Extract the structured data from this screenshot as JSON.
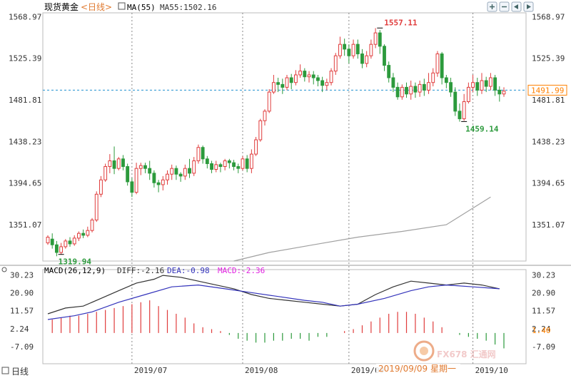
{
  "header": {
    "instrument": "现货黄金",
    "period": "<日线>",
    "ma_toggle": "MA(55)",
    "ma_readout": "MA55:1502.16",
    "toolbar_icons": [
      "zoom-in-icon",
      "zoom-out-icon",
      "scroll-left-icon",
      "scroll-right-icon"
    ]
  },
  "watermark": {
    "brand": "FX678 汇通网",
    "date_readout": "2019/09/09 星期一"
  },
  "bottom_left": "日线",
  "colors": {
    "up": "#e03c3c",
    "down": "#2c9a3c",
    "ma55": "#a0a0a0",
    "diff": "#333333",
    "dea": "#3333bb",
    "price_marker": "#ff8000",
    "dashed": "#2090d0"
  },
  "chart_data": [
    {
      "type": "candlestick",
      "title": "",
      "ylim": [
        1313,
        1573
      ],
      "y_ticks": [
        "1568.97",
        "1525.39",
        "1481.81",
        "1438.23",
        "1394.65",
        "1351.07"
      ],
      "x_ticks": [
        "2019/07",
        "2019/08",
        "2019/09",
        "2019/10"
      ],
      "current_price": "1491.99",
      "current_price_value": 1491.99,
      "annotations": [
        {
          "text": "1557.11",
          "value": 1557.11
        },
        {
          "text": "1319.94",
          "value": 1319.94
        },
        {
          "text": "1459.14",
          "value": 1459.14
        }
      ],
      "ma55_points": [
        [
          42,
          1313
        ],
        [
          50,
          1322
        ],
        [
          60,
          1330
        ],
        [
          70,
          1338
        ],
        [
          80,
          1344
        ],
        [
          90,
          1351
        ],
        [
          100,
          1380
        ],
        [
          108,
          1410
        ],
        [
          114,
          1433
        ],
        [
          120,
          1447
        ],
        [
          126,
          1455
        ],
        [
          132,
          1463
        ],
        [
          140,
          1470
        ],
        [
          146,
          1475
        ],
        [
          152,
          1480
        ],
        [
          158,
          1484
        ],
        [
          164,
          1487
        ]
      ],
      "candles": [
        [
          1332,
          1338,
          1330,
          1340
        ],
        [
          1336,
          1330,
          1326,
          1342
        ],
        [
          1330,
          1322,
          1318,
          1334
        ],
        [
          1322,
          1328,
          1320,
          1332
        ],
        [
          1328,
          1334,
          1326,
          1336
        ],
        [
          1334,
          1331,
          1328,
          1338
        ],
        [
          1331,
          1337,
          1329,
          1340
        ],
        [
          1337,
          1342,
          1334,
          1344
        ],
        [
          1342,
          1340,
          1337,
          1346
        ],
        [
          1340,
          1345,
          1338,
          1349
        ],
        [
          1345,
          1356,
          1343,
          1358
        ],
        [
          1356,
          1383,
          1354,
          1386
        ],
        [
          1383,
          1398,
          1380,
          1402
        ],
        [
          1398,
          1412,
          1396,
          1415
        ],
        [
          1412,
          1418,
          1405,
          1425
        ],
        [
          1418,
          1410,
          1404,
          1433
        ],
        [
          1410,
          1420,
          1408,
          1422
        ],
        [
          1420,
          1412,
          1408,
          1424
        ],
        [
          1412,
          1396,
          1392,
          1415
        ],
        [
          1396,
          1385,
          1380,
          1400
        ],
        [
          1385,
          1410,
          1383,
          1416
        ],
        [
          1410,
          1413,
          1403,
          1416
        ],
        [
          1413,
          1410,
          1405,
          1416
        ],
        [
          1410,
          1405,
          1398,
          1418
        ],
        [
          1405,
          1395,
          1390,
          1408
        ],
        [
          1395,
          1393,
          1385,
          1398
        ],
        [
          1393,
          1398,
          1387,
          1402
        ],
        [
          1398,
          1404,
          1393,
          1408
        ],
        [
          1404,
          1410,
          1398,
          1414
        ],
        [
          1410,
          1404,
          1398,
          1413
        ],
        [
          1404,
          1402,
          1396,
          1406
        ],
        [
          1402,
          1410,
          1398,
          1414
        ],
        [
          1410,
          1405,
          1400,
          1420
        ],
        [
          1405,
          1418,
          1402,
          1422
        ],
        [
          1418,
          1432,
          1415,
          1435
        ],
        [
          1432,
          1420,
          1415,
          1434
        ],
        [
          1420,
          1415,
          1410,
          1423
        ],
        [
          1415,
          1409,
          1405,
          1418
        ],
        [
          1409,
          1414,
          1406,
          1418
        ],
        [
          1414,
          1412,
          1406,
          1416
        ],
        [
          1412,
          1418,
          1408,
          1420
        ],
        [
          1418,
          1416,
          1410,
          1420
        ],
        [
          1416,
          1412,
          1408,
          1419
        ],
        [
          1412,
          1410,
          1405,
          1415
        ],
        [
          1410,
          1420,
          1408,
          1423
        ],
        [
          1420,
          1410,
          1406,
          1424
        ],
        [
          1410,
          1425,
          1405,
          1430
        ],
        [
          1425,
          1440,
          1423,
          1443
        ],
        [
          1440,
          1460,
          1438,
          1462
        ],
        [
          1460,
          1470,
          1455,
          1472
        ],
        [
          1470,
          1490,
          1468,
          1493
        ],
        [
          1490,
          1500,
          1488,
          1508
        ],
        [
          1500,
          1498,
          1490,
          1505
        ],
        [
          1498,
          1495,
          1488,
          1504
        ],
        [
          1495,
          1505,
          1492,
          1508
        ],
        [
          1505,
          1500,
          1493,
          1509
        ],
        [
          1500,
          1508,
          1497,
          1513
        ],
        [
          1508,
          1512,
          1505,
          1519
        ],
        [
          1512,
          1506,
          1501,
          1515
        ],
        [
          1506,
          1508,
          1500,
          1512
        ],
        [
          1508,
          1505,
          1498,
          1512
        ],
        [
          1505,
          1502,
          1496,
          1508
        ],
        [
          1502,
          1497,
          1490,
          1506
        ],
        [
          1497,
          1500,
          1492,
          1504
        ],
        [
          1500,
          1512,
          1497,
          1515
        ],
        [
          1512,
          1528,
          1508,
          1531
        ],
        [
          1528,
          1540,
          1525,
          1548
        ],
        [
          1540,
          1535,
          1528,
          1546
        ],
        [
          1535,
          1528,
          1520,
          1540
        ],
        [
          1528,
          1540,
          1525,
          1545
        ],
        [
          1540,
          1530,
          1525,
          1545
        ],
        [
          1530,
          1520,
          1515,
          1535
        ],
        [
          1520,
          1528,
          1516,
          1533
        ],
        [
          1528,
          1540,
          1525,
          1545
        ],
        [
          1540,
          1552,
          1536,
          1557
        ],
        [
          1552,
          1538,
          1530,
          1555
        ],
        [
          1538,
          1518,
          1512,
          1540
        ],
        [
          1518,
          1505,
          1500,
          1522
        ],
        [
          1505,
          1495,
          1490,
          1510
        ],
        [
          1495,
          1485,
          1482,
          1500
        ],
        [
          1485,
          1495,
          1482,
          1498
        ],
        [
          1495,
          1488,
          1484,
          1500
        ],
        [
          1488,
          1496,
          1482,
          1502
        ],
        [
          1496,
          1490,
          1484,
          1500
        ],
        [
          1490,
          1498,
          1485,
          1502
        ],
        [
          1498,
          1492,
          1486,
          1504
        ],
        [
          1492,
          1500,
          1488,
          1510
        ],
        [
          1500,
          1510,
          1496,
          1515
        ],
        [
          1510,
          1530,
          1506,
          1533
        ],
        [
          1530,
          1505,
          1498,
          1532
        ],
        [
          1505,
          1500,
          1494,
          1508
        ],
        [
          1500,
          1490,
          1485,
          1505
        ],
        [
          1490,
          1470,
          1465,
          1495
        ],
        [
          1470,
          1462,
          1459,
          1478
        ],
        [
          1462,
          1480,
          1460,
          1488
        ],
        [
          1480,
          1495,
          1478,
          1500
        ],
        [
          1495,
          1500,
          1490,
          1508
        ],
        [
          1500,
          1492,
          1486,
          1505
        ],
        [
          1492,
          1502,
          1488,
          1510
        ],
        [
          1502,
          1496,
          1490,
          1506
        ],
        [
          1496,
          1505,
          1492,
          1510
        ],
        [
          1505,
          1492,
          1486,
          1508
        ],
        [
          1492,
          1488,
          1480,
          1496
        ],
        [
          1488,
          1491,
          1485,
          1495
        ]
      ]
    },
    {
      "type": "bar+line",
      "title": "",
      "ylim": [
        -16,
        33
      ],
      "y_ticks": [
        "30.23",
        "20.90",
        "11.57",
        "2.24",
        "-7.09"
      ],
      "current_value": "1.40",
      "current_value_num": 1.4,
      "legend": {
        "macd_label": "MACD(26,12,9)",
        "diff_label": "DIFF:-2.16",
        "dea_label": "DEA:-0.98",
        "macd_value_label": "MACD:-2.36"
      },
      "diff_points": [
        [
          0,
          10
        ],
        [
          4,
          13
        ],
        [
          8,
          14
        ],
        [
          12,
          18
        ],
        [
          16,
          22
        ],
        [
          20,
          26
        ],
        [
          24,
          28
        ],
        [
          26,
          30
        ],
        [
          30,
          29
        ],
        [
          34,
          27
        ],
        [
          38,
          25
        ],
        [
          42,
          23
        ],
        [
          46,
          20
        ],
        [
          50,
          18
        ],
        [
          54,
          17
        ],
        [
          58,
          16
        ],
        [
          62,
          15
        ],
        [
          66,
          14
        ],
        [
          70,
          15
        ],
        [
          74,
          20
        ],
        [
          78,
          24
        ],
        [
          82,
          27
        ],
        [
          86,
          26
        ],
        [
          90,
          25
        ],
        [
          94,
          26
        ],
        [
          98,
          25
        ],
        [
          102,
          23
        ],
        [
          106,
          18
        ],
        [
          110,
          12
        ],
        [
          114,
          8
        ],
        [
          118,
          4
        ],
        [
          122,
          2
        ],
        [
          126,
          1
        ],
        [
          130,
          2
        ],
        [
          134,
          3
        ],
        [
          138,
          2
        ],
        [
          142,
          0
        ],
        [
          146,
          0
        ],
        [
          150,
          1
        ],
        [
          154,
          1
        ],
        [
          158,
          0
        ],
        [
          164,
          -2
        ]
      ],
      "dea_points": [
        [
          0,
          7
        ],
        [
          6,
          9
        ],
        [
          10,
          11
        ],
        [
          16,
          16
        ],
        [
          22,
          20
        ],
        [
          28,
          24
        ],
        [
          34,
          25
        ],
        [
          40,
          23
        ],
        [
          46,
          21
        ],
        [
          52,
          19
        ],
        [
          58,
          17
        ],
        [
          62,
          16
        ],
        [
          66,
          14
        ],
        [
          70,
          15
        ],
        [
          76,
          18
        ],
        [
          82,
          22
        ],
        [
          86,
          24
        ],
        [
          90,
          25
        ],
        [
          96,
          24
        ],
        [
          102,
          23
        ],
        [
          106,
          21
        ],
        [
          110,
          18
        ],
        [
          114,
          14
        ],
        [
          118,
          10
        ],
        [
          122,
          7
        ],
        [
          126,
          5
        ],
        [
          130,
          4
        ],
        [
          134,
          3
        ],
        [
          138,
          2
        ],
        [
          142,
          1
        ],
        [
          146,
          1
        ],
        [
          150,
          0
        ],
        [
          156,
          0
        ],
        [
          164,
          -1
        ]
      ],
      "histogram": [
        [
          1,
          7
        ],
        [
          3,
          8
        ],
        [
          5,
          9
        ],
        [
          7,
          9
        ],
        [
          9,
          10
        ],
        [
          11,
          11
        ],
        [
          13,
          12
        ],
        [
          15,
          13
        ],
        [
          17,
          14
        ],
        [
          19,
          15
        ],
        [
          21,
          16
        ],
        [
          23,
          17
        ],
        [
          25,
          14
        ],
        [
          27,
          12
        ],
        [
          29,
          10
        ],
        [
          31,
          8
        ],
        [
          33,
          5
        ],
        [
          35,
          3
        ],
        [
          37,
          2
        ],
        [
          39,
          1
        ],
        [
          41,
          -1
        ],
        [
          43,
          -3
        ],
        [
          45,
          -4
        ],
        [
          47,
          -5
        ],
        [
          49,
          -5
        ],
        [
          51,
          -4
        ],
        [
          53,
          -4
        ],
        [
          55,
          -3
        ],
        [
          57,
          -3
        ],
        [
          59,
          -4
        ],
        [
          61,
          -2
        ],
        [
          63,
          -2
        ],
        [
          65,
          0
        ],
        [
          67,
          1
        ],
        [
          69,
          2
        ],
        [
          71,
          4
        ],
        [
          73,
          6
        ],
        [
          75,
          8
        ],
        [
          77,
          10
        ],
        [
          79,
          11
        ],
        [
          81,
          11
        ],
        [
          83,
          10
        ],
        [
          85,
          8
        ],
        [
          87,
          6
        ],
        [
          89,
          3
        ],
        [
          91,
          0
        ],
        [
          93,
          -1
        ],
        [
          95,
          -2
        ],
        [
          97,
          -3
        ],
        [
          99,
          -4
        ],
        [
          101,
          -6
        ],
        [
          103,
          -8
        ],
        [
          105,
          -10
        ],
        [
          107,
          -12
        ],
        [
          109,
          -14
        ],
        [
          111,
          -15
        ],
        [
          113,
          -14
        ],
        [
          115,
          -12
        ],
        [
          117,
          -10
        ],
        [
          119,
          -8
        ],
        [
          121,
          -6
        ],
        [
          123,
          -4
        ],
        [
          125,
          -3
        ],
        [
          127,
          -2
        ],
        [
          129,
          -2
        ],
        [
          131,
          -1
        ],
        [
          133,
          -1
        ],
        [
          135,
          -2
        ],
        [
          137,
          -3
        ],
        [
          139,
          -3
        ],
        [
          141,
          -3
        ],
        [
          143,
          -2
        ],
        [
          145,
          -2
        ],
        [
          147,
          -1
        ],
        [
          149,
          -1
        ],
        [
          151,
          -1
        ],
        [
          153,
          -1
        ],
        [
          155,
          -1
        ],
        [
          157,
          -1
        ],
        [
          159,
          -1
        ],
        [
          161,
          -1
        ],
        [
          163,
          -1
        ]
      ]
    }
  ]
}
